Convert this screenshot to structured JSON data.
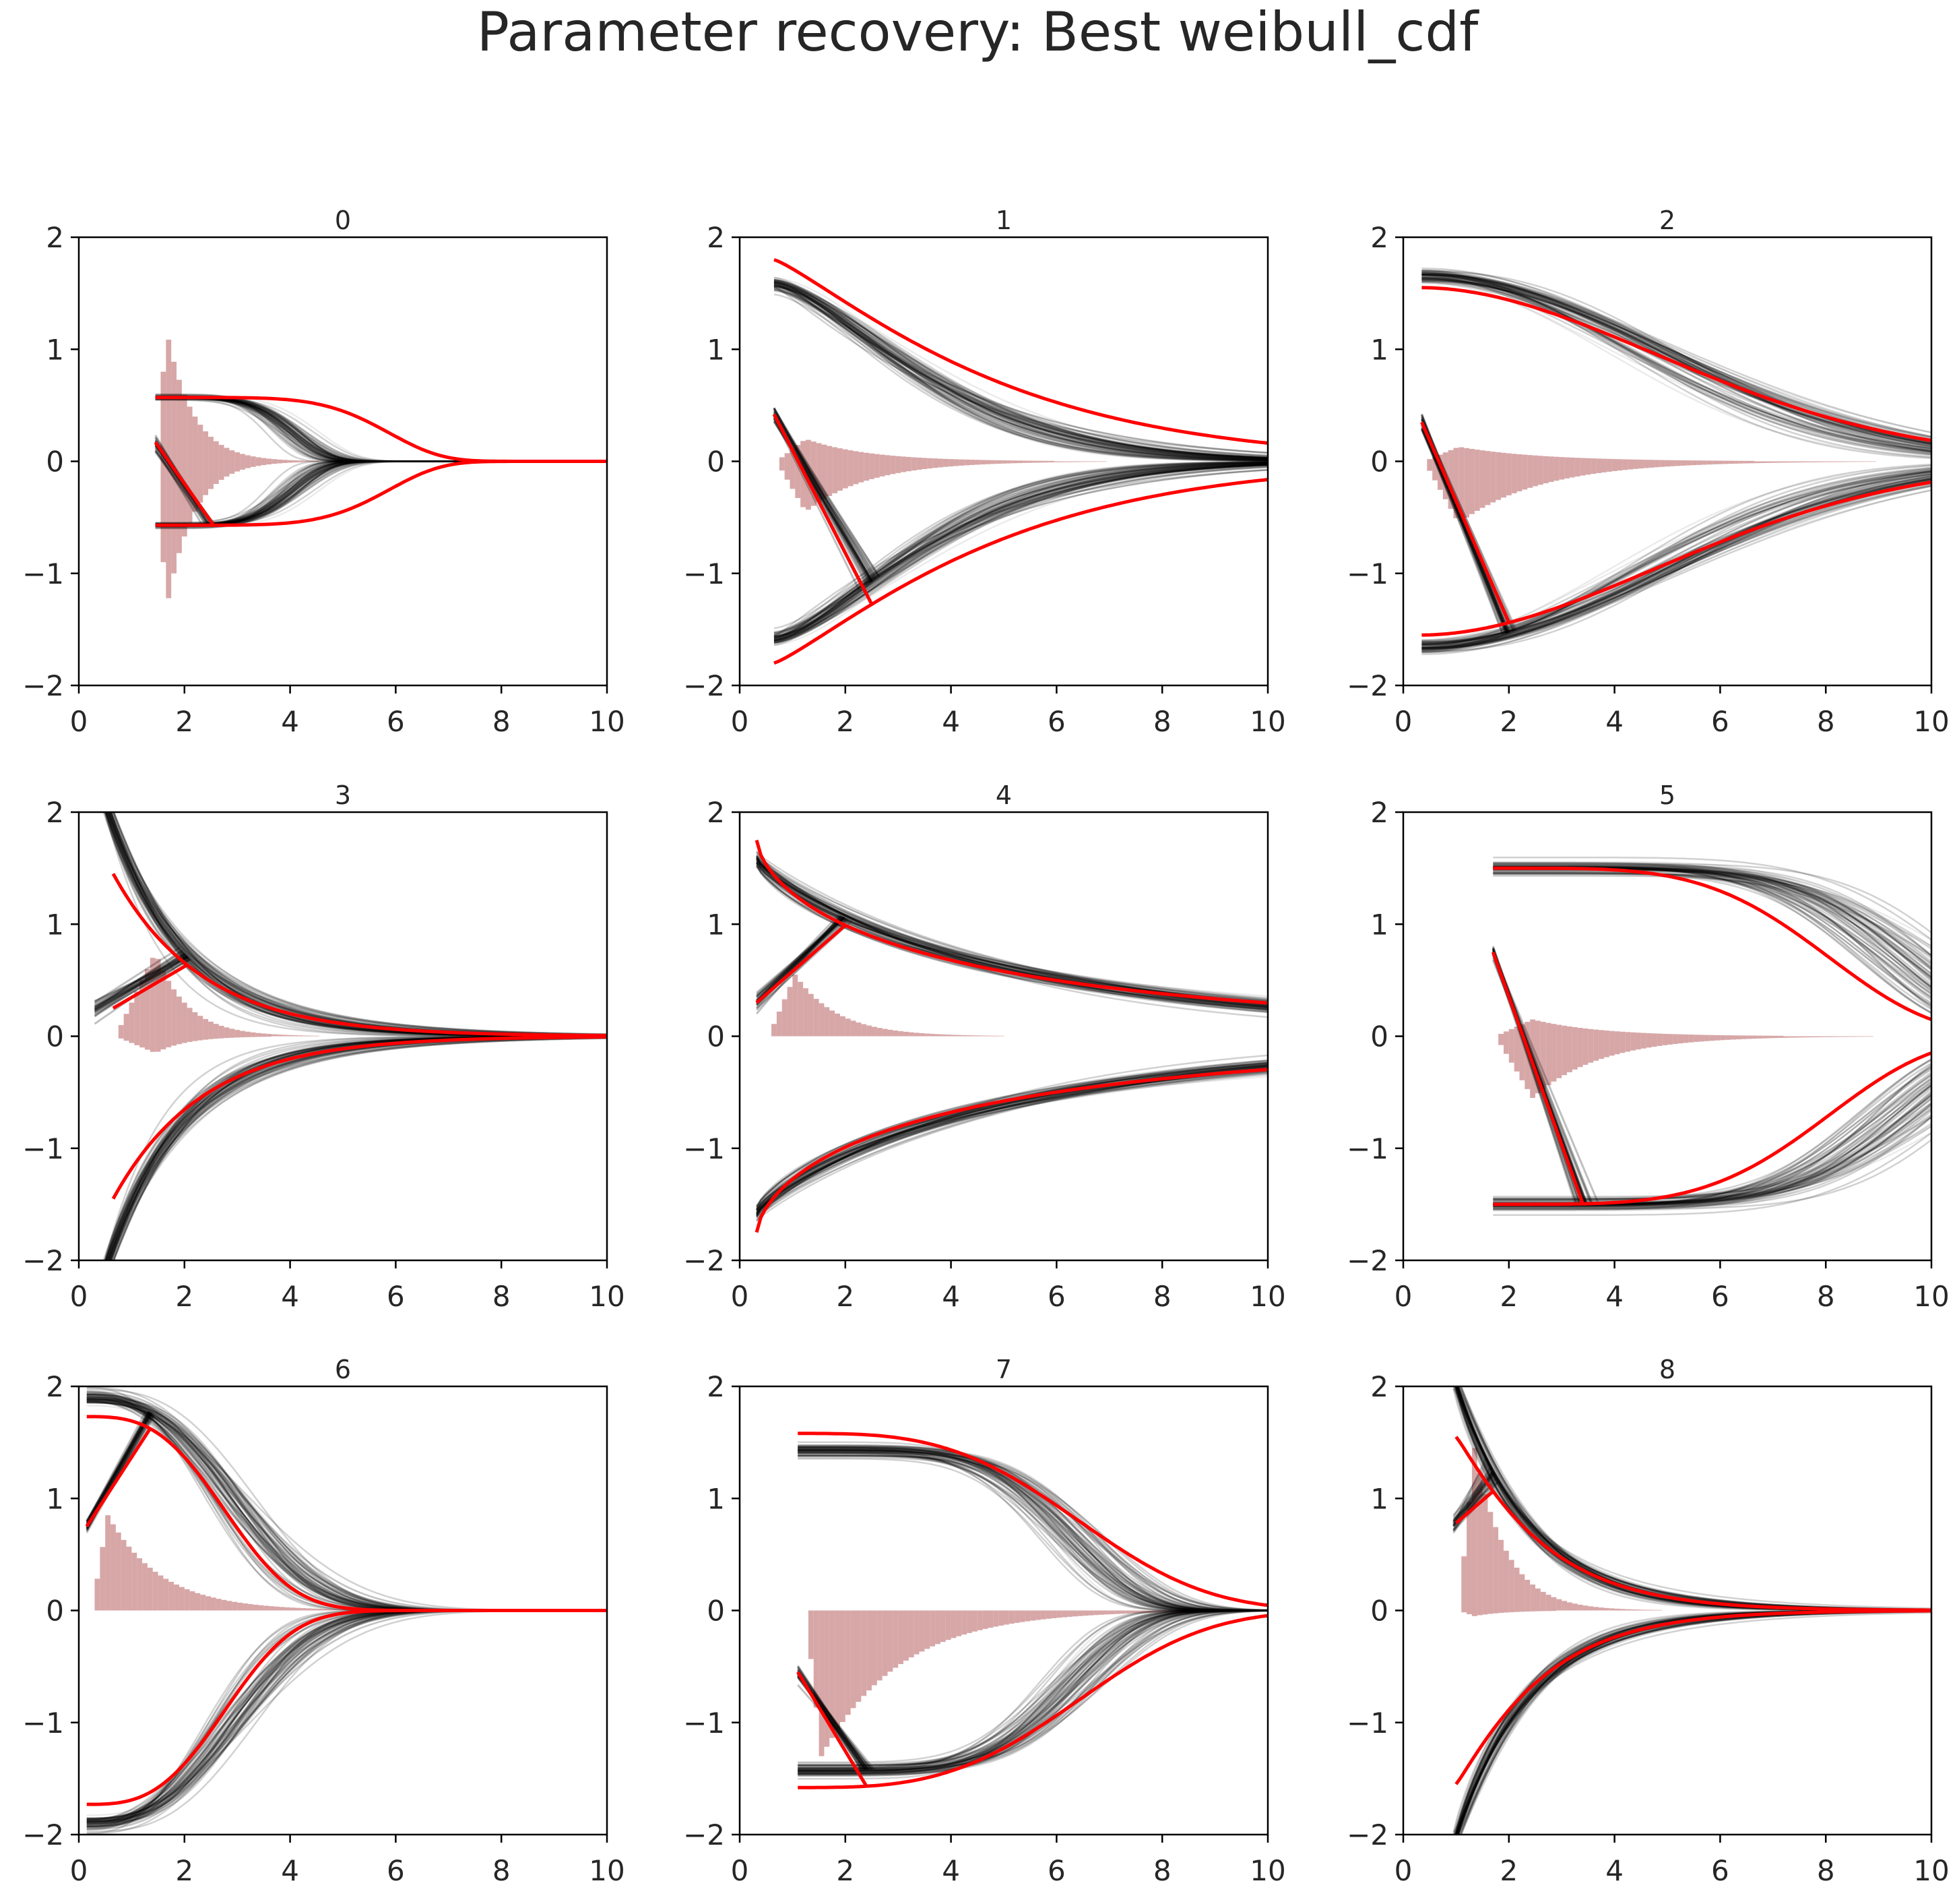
{
  "title": "Parameter recovery: Best weibull_cdf",
  "chart_data": {
    "type": "line",
    "grid": false,
    "xlim": [
      0,
      10
    ],
    "ylim": [
      -2,
      2
    ],
    "x_ticks": [
      "0",
      "2",
      "4",
      "6",
      "8",
      "10"
    ],
    "y_ticks": [
      "−2",
      "−1",
      "0",
      "1",
      "2"
    ],
    "colors": {
      "posterior_samples": "#000000",
      "true_boundary": "#ff0000",
      "rt_histogram": "#c98a8a"
    },
    "panels": [
      {
        "title": "0",
        "true_bound": {
          "a": 0.57,
          "alpha": 5.5,
          "beta": 4.6,
          "t0": 1.45
        },
        "samples_bound": {
          "a": 0.57,
          "alpha": 5.0,
          "beta": 2.7,
          "t0": 1.45
        },
        "true_trajectory": {
          "start": 0.17,
          "t_hit": 2.55
        },
        "hist": {
          "t0": 1.45,
          "peak_t": 1.6,
          "peak_h": 1.2,
          "neg_peak_h": 1.35,
          "scale": 0.5
        }
      },
      {
        "title": "1",
        "true_bound": {
          "a": 1.8,
          "alpha": 1.2,
          "beta": 4.5,
          "t0": 0.65
        },
        "samples_bound": {
          "a": 1.58,
          "alpha": 1.5,
          "beta": 3.5,
          "t0": 0.65
        },
        "true_trajectory": {
          "start": 0.42,
          "t_hit": 2.5
        },
        "hist": {
          "t0": 0.65,
          "peak_t": 1.2,
          "peak_h": 0.2,
          "neg_peak_h": 0.45,
          "scale": 1.2
        }
      },
      {
        "title": "2",
        "true_bound": {
          "a": 1.55,
          "alpha": 1.9,
          "beta": 6.5,
          "t0": 0.35
        },
        "samples_bound": {
          "a": 1.65,
          "alpha": 2.0,
          "beta": 6.0,
          "t0": 0.35
        },
        "true_trajectory": {
          "start": 0.35,
          "t_hit": 2.0
        },
        "hist": {
          "t0": 0.35,
          "peak_t": 1.0,
          "peak_h": 0.13,
          "neg_peak_h": 0.55,
          "scale": 1.6
        }
      },
      {
        "title": "3",
        "true_bound": {
          "a": 1.45,
          "alpha": 1.0,
          "beta": 1.7,
          "t0": 0.65
        },
        "samples_bound": {
          "a": 2.4,
          "alpha": 1.0,
          "beta": 1.45,
          "t0": 0.3
        },
        "true_trajectory": {
          "start": 0.25,
          "t_hit": 2.05
        },
        "hist": {
          "t0": 0.65,
          "peak_t": 1.4,
          "peak_h": 0.75,
          "neg_peak_h": 0.15,
          "scale": 0.6
        }
      },
      {
        "title": "4",
        "true_bound": {
          "a": 1.75,
          "alpha": 0.65,
          "beta": 4.0,
          "t0": 0.32
        },
        "samples_bound": {
          "a": 1.57,
          "alpha": 0.85,
          "beta": 5.0,
          "t0": 0.32
        },
        "true_trajectory": {
          "start": 0.3,
          "t_hit": 2.0
        },
        "hist": {
          "t0": 0.5,
          "peak_t": 1.0,
          "peak_h": 0.55,
          "neg_peak_h": 0.0,
          "scale": 0.8
        }
      },
      {
        "title": "5",
        "true_bound": {
          "a": 1.5,
          "alpha": 4.2,
          "beta": 6.8,
          "t0": 1.7
        },
        "samples_bound": {
          "a": 1.5,
          "alpha": 5.5,
          "beta": 8.2,
          "t0": 1.7
        },
        "true_trajectory": {
          "start": 0.75,
          "t_hit": 3.4
        },
        "hist": {
          "t0": 1.7,
          "peak_t": 2.4,
          "peak_h": 0.15,
          "neg_peak_h": 0.55,
          "scale": 1.3
        }
      },
      {
        "title": "6",
        "true_bound": {
          "a": 1.73,
          "alpha": 3.0,
          "beta": 3.0,
          "t0": 0.15
        },
        "samples_bound": {
          "a": 1.9,
          "alpha": 2.7,
          "beta": 3.2,
          "t0": 0.15
        },
        "true_trajectory": {
          "start": 0.75,
          "t_hit": 1.35
        },
        "hist": {
          "t0": 0.2,
          "peak_t": 0.5,
          "peak_h": 0.85,
          "neg_peak_h": 0.0,
          "scale": 1.0
        }
      },
      {
        "title": "7",
        "true_bound": {
          "a": 1.58,
          "alpha": 3.2,
          "beta": 6.0,
          "t0": 1.1
        },
        "samples_bound": {
          "a": 1.42,
          "alpha": 5.0,
          "beta": 5.5,
          "t0": 1.1
        },
        "true_trajectory": {
          "start": -0.55,
          "t_hit": 2.4
        },
        "hist": {
          "t0": 1.2,
          "peak_t": 1.5,
          "peak_h": 0.0,
          "neg_peak_h": 1.3,
          "scale": 1.5
        }
      },
      {
        "title": "8",
        "true_bound": {
          "a": 1.55,
          "alpha": 1.1,
          "beta": 1.7,
          "t0": 1.0
        },
        "samples_bound": {
          "a": 2.1,
          "alpha": 1.0,
          "beta": 1.4,
          "t0": 0.95
        },
        "true_trajectory": {
          "start": 0.78,
          "t_hit": 1.7
        },
        "hist": {
          "t0": 1.0,
          "peak_t": 1.3,
          "peak_h": 1.45,
          "neg_peak_h": 0.05,
          "scale": 0.6
        }
      }
    ]
  }
}
